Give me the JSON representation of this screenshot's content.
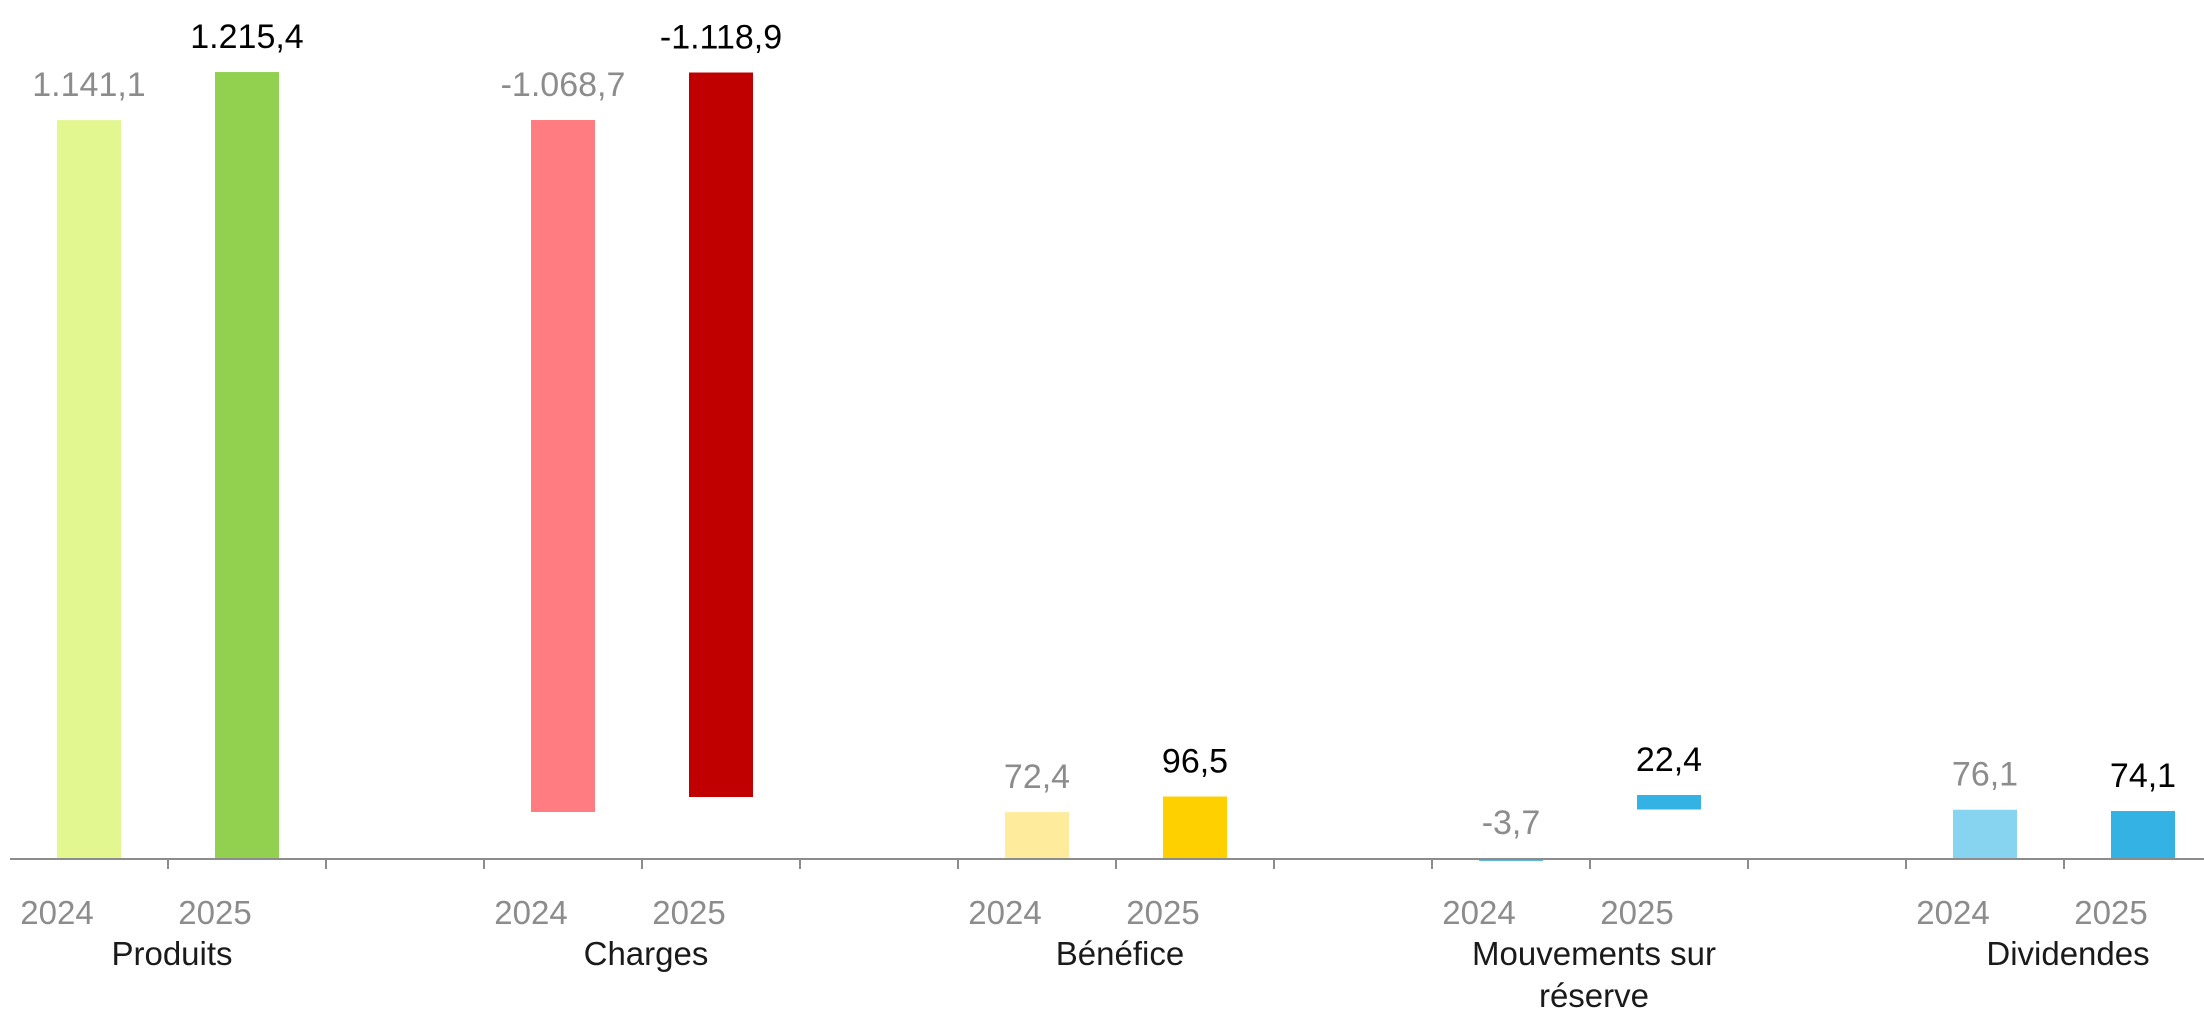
{
  "chart_data": {
    "type": "bar",
    "title": "",
    "xlabel": "",
    "ylabel": "",
    "grid": false,
    "legend": "none",
    "years": [
      "2024",
      "2025"
    ],
    "categories": [
      {
        "name": "Produits",
        "lines": [
          "Produits"
        ],
        "values": [
          1141.1,
          1215.4
        ],
        "labels": [
          "1.141,1",
          "1.215,4"
        ],
        "colors": [
          "#e2f78f",
          "#92d050"
        ]
      },
      {
        "name": "Charges",
        "lines": [
          "Charges"
        ],
        "values": [
          -1068.7,
          -1118.9
        ],
        "labels": [
          "-1.068,7",
          "-1.118,9"
        ],
        "colors": [
          "#ff7c80",
          "#c00000"
        ]
      },
      {
        "name": "Bénéfice",
        "lines": [
          "Bénéfice"
        ],
        "values": [
          72.4,
          96.5
        ],
        "labels": [
          "72,4",
          "96,5"
        ],
        "colors": [
          "#ffeb9c",
          "#ffd000"
        ]
      },
      {
        "name": "Mouvements sur réserve",
        "lines": [
          "Mouvements sur",
          "réserve"
        ],
        "values": [
          -3.7,
          22.4
        ],
        "labels": [
          "-3,7",
          "22,4"
        ],
        "colors": [
          "#5fb9df",
          "#35b2e4"
        ]
      },
      {
        "name": "Dividendes",
        "lines": [
          "Dividendes"
        ],
        "values": [
          76.1,
          74.1
        ],
        "labels": [
          "76,1",
          "74,1"
        ],
        "colors": [
          "#87d4f0",
          "#35b2e4"
        ]
      }
    ]
  }
}
